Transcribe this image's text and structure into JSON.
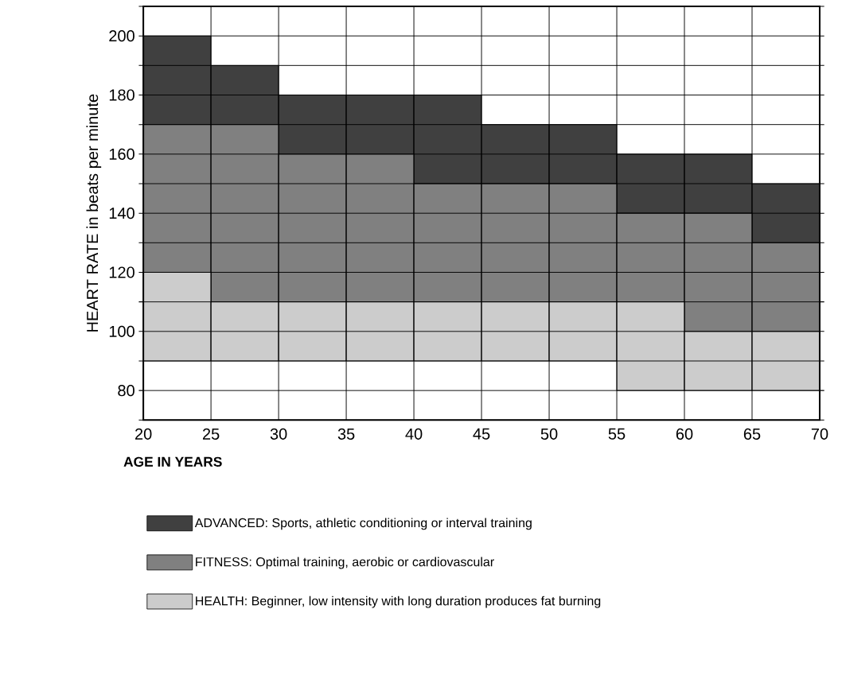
{
  "chart_data": {
    "type": "bar",
    "xlabel": "AGE IN YEARS",
    "ylabel": "HEART RATE in beats per minute",
    "x": [
      22.5,
      27.5,
      32.5,
      37.5,
      42.5,
      47.5,
      52.5,
      57.5,
      62.5,
      67.5
    ],
    "xlim": [
      20,
      70
    ],
    "xticks": [
      20,
      25,
      30,
      35,
      40,
      45,
      50,
      55,
      60,
      65,
      70
    ],
    "ylim": [
      70,
      210
    ],
    "yticks": [
      {
        "value": 70,
        "label": null
      },
      80,
      {
        "value": 90,
        "label": null
      },
      100,
      {
        "value": 110,
        "label": null
      },
      120,
      {
        "value": 130,
        "label": null
      },
      140,
      {
        "value": 150,
        "label": null
      },
      160,
      {
        "value": 170,
        "label": null
      },
      180,
      {
        "value": 190,
        "label": null
      },
      200,
      {
        "value": 210,
        "label": null
      }
    ],
    "grid": true,
    "legend": "bottom",
    "series": [
      {
        "name": "ADVANCED:  Sports, athletic conditioning or interval training",
        "color": "#404040",
        "base": [
          170,
          170,
          160,
          160,
          150,
          150,
          150,
          140,
          140,
          130
        ],
        "values": [
          30,
          20,
          20,
          20,
          30,
          20,
          20,
          20,
          20,
          20
        ]
      },
      {
        "name": "FITNESS:  Optimal training, aerobic or cardiovascular",
        "color": "#808080",
        "base": [
          120,
          110,
          110,
          110,
          110,
          110,
          110,
          110,
          100,
          100
        ],
        "values": [
          50,
          60,
          50,
          50,
          40,
          40,
          40,
          30,
          40,
          30
        ]
      },
      {
        "name": "HEALTH:  Beginner, low intensity with long duration produces fat burning",
        "color": "#cccccc",
        "base": [
          90,
          90,
          90,
          90,
          90,
          90,
          90,
          80,
          80,
          80
        ],
        "values": [
          30,
          20,
          20,
          20,
          20,
          20,
          20,
          30,
          20,
          20
        ]
      }
    ]
  }
}
